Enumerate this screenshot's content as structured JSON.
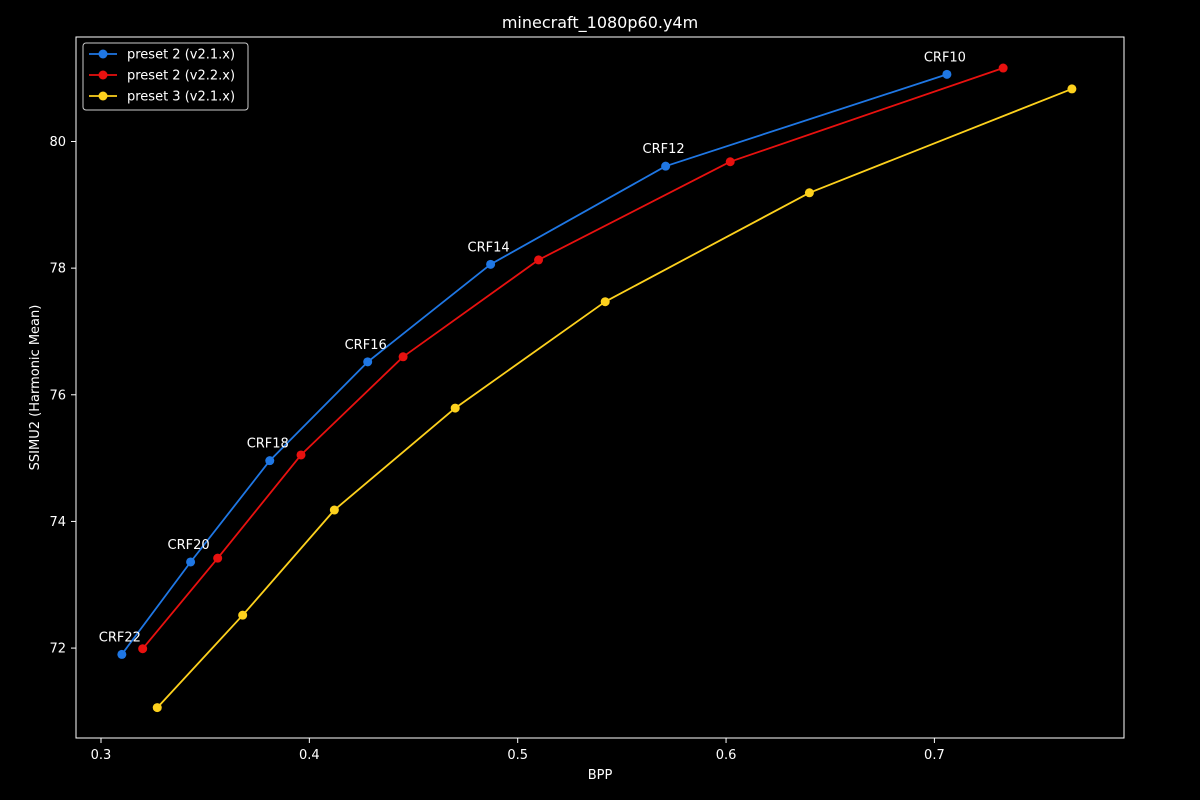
{
  "chart_data": {
    "type": "line",
    "title": "minecraft_1080p60.y4m",
    "xlabel": "BPP",
    "ylabel": "SSIMU2 (Harmonic Mean)",
    "xlim": [
      0.288,
      0.791
    ],
    "ylim": [
      70.58,
      81.65
    ],
    "x_ticks": [
      0.3,
      0.4,
      0.5,
      0.6,
      0.7
    ],
    "x_tick_labels": [
      "0.3",
      "0.4",
      "0.5",
      "0.6",
      "0.7"
    ],
    "y_ticks": [
      72,
      74,
      76,
      78,
      80
    ],
    "y_tick_labels": [
      "72",
      "74",
      "76",
      "78",
      "80"
    ],
    "grid": false,
    "legend_position": "top-left",
    "background": "#000000",
    "series": [
      {
        "name": "preset 2 (v2.1.x)",
        "color": "#1f77e4",
        "points": [
          {
            "x": 0.31,
            "y": 71.9
          },
          {
            "x": 0.343,
            "y": 73.36
          },
          {
            "x": 0.381,
            "y": 74.96
          },
          {
            "x": 0.428,
            "y": 76.52
          },
          {
            "x": 0.487,
            "y": 78.06
          },
          {
            "x": 0.571,
            "y": 79.61
          },
          {
            "x": 0.706,
            "y": 81.06
          }
        ]
      },
      {
        "name": "preset 2 (v2.2.x)",
        "color": "#e8110f",
        "points": [
          {
            "x": 0.32,
            "y": 71.99
          },
          {
            "x": 0.356,
            "y": 73.42
          },
          {
            "x": 0.396,
            "y": 75.05
          },
          {
            "x": 0.445,
            "y": 76.6
          },
          {
            "x": 0.51,
            "y": 78.13
          },
          {
            "x": 0.602,
            "y": 79.68
          },
          {
            "x": 0.733,
            "y": 81.16
          }
        ]
      },
      {
        "name": "preset 3 (v2.1.x)",
        "color": "#fdd11d",
        "points": [
          {
            "x": 0.327,
            "y": 71.06
          },
          {
            "x": 0.368,
            "y": 72.52
          },
          {
            "x": 0.412,
            "y": 74.18
          },
          {
            "x": 0.47,
            "y": 75.79
          },
          {
            "x": 0.542,
            "y": 77.47
          },
          {
            "x": 0.64,
            "y": 79.19
          },
          {
            "x": 0.766,
            "y": 80.83
          }
        ]
      }
    ],
    "annotations": [
      {
        "text": "CRF22",
        "x": 0.31,
        "y": 71.9
      },
      {
        "text": "CRF20",
        "x": 0.343,
        "y": 73.36
      },
      {
        "text": "CRF18",
        "x": 0.381,
        "y": 74.96
      },
      {
        "text": "CRF16",
        "x": 0.428,
        "y": 76.52
      },
      {
        "text": "CRF14",
        "x": 0.487,
        "y": 78.06
      },
      {
        "text": "CRF12",
        "x": 0.571,
        "y": 79.61
      },
      {
        "text": "CRF10",
        "x": 0.706,
        "y": 81.06
      }
    ]
  }
}
